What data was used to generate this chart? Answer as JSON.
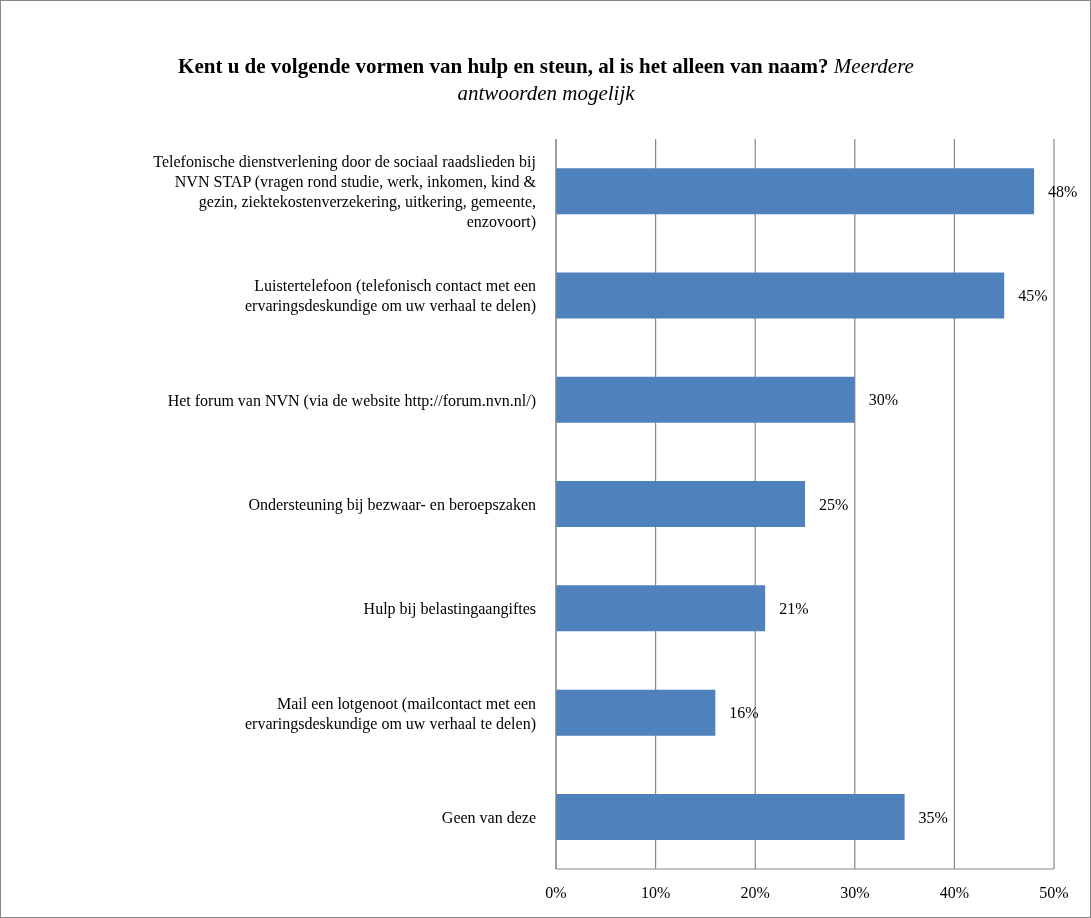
{
  "chart_data": {
    "type": "bar",
    "orientation": "horizontal",
    "title": "Kent u de volgende vormen van hulp en steun, al is het alleen van naam?",
    "subtitle": "Meerdere antwoorden mogelijk",
    "categories": [
      "Telefonische dienstverlening door de sociaal raadslieden bij NVN STAP (vragen rond studie, werk, inkomen, kind & gezin, ziektekostenverzekering, uitkering, gemeente, enzovoort)",
      "Luistertelefoon (telefonisch contact met een ervaringsdeskundige om uw verhaal te delen)",
      "Het forum van NVN (via de website http://forum.nvn.nl/)",
      "Ondersteuning bij bezwaar- en beroepszaken",
      "Hulp bij belastingaangiftes",
      "Mail een lotgenoot (mailcontact met een ervaringsdeskundige om uw verhaal te delen)",
      "Geen van deze"
    ],
    "values": [
      48,
      45,
      30,
      25,
      21,
      16,
      35
    ],
    "color": "#4f81bd",
    "value_labels": [
      "48%",
      "45%",
      "30%",
      "25%",
      "21%",
      "16%",
      "35%"
    ],
    "xlim": [
      0,
      50
    ],
    "xticks": [
      {
        "value": 0,
        "label": "0%"
      },
      {
        "value": 10,
        "label": "10%"
      },
      {
        "value": 20,
        "label": "20%"
      },
      {
        "value": 30,
        "label": "30%"
      },
      {
        "value": 40,
        "label": "40%"
      },
      {
        "value": 50,
        "label": "50%"
      }
    ],
    "grid": "x"
  }
}
